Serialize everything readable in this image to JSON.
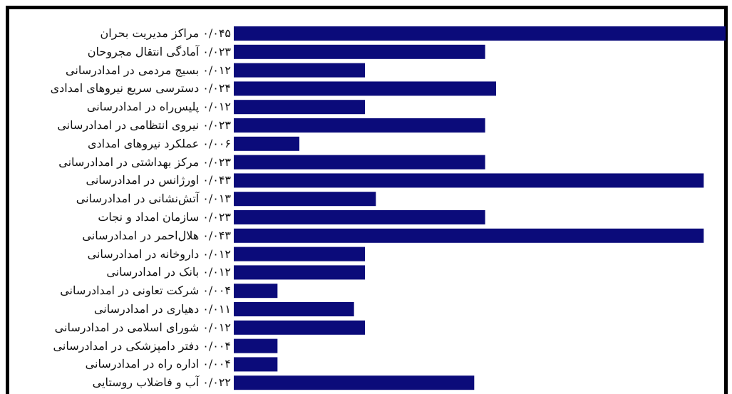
{
  "chart_data": {
    "type": "bar",
    "orientation": "horizontal",
    "color": "#0b0b7a",
    "categories": [
      "مراکز مدیریت بحران",
      "آمادگی انتقال مجروحان",
      "بسیج مردمی در امدادرسانی",
      "دسترسی سریع نیروهای امدادی",
      "پلیس‌راه در امدادرسانی",
      "نیروی انتظامی در امدادرسانی",
      "عملکرد نیروهای امدادی",
      "مرکز بهداشتی در امدادرسانی",
      "اورژانس در امدادرسانی",
      "آتش‌نشانی در امدادرسانی",
      "سازمان امداد و نجات",
      "هلال‌احمر در امدادرسانی",
      "داروخانه در امدادرسانی",
      "بانک در امدادرسانی",
      "شرکت تعاونی در امدادرسانی",
      "دهیاری در امدادرسانی",
      "شورای اسلامی در امدادرسانی",
      "دفتر دامپزشکی در امدادرسانی",
      "اداره راه در امدادرسانی",
      "آب و فاضلاب روستایی"
    ],
    "values": [
      0.045,
      0.023,
      0.012,
      0.024,
      0.012,
      0.023,
      0.006,
      0.023,
      0.043,
      0.013,
      0.023,
      0.043,
      0.012,
      0.012,
      0.004,
      0.011,
      0.012,
      0.004,
      0.004,
      0.022
    ],
    "value_labels": [
      "۰/۰۴۵",
      "۰/۰۲۳",
      "۰/۰۱۲",
      "۰/۰۲۴",
      "۰/۰۱۲",
      "۰/۰۲۳",
      "۰/۰۰۶",
      "۰/۰۲۳",
      "۰/۰۴۳",
      "۰/۰۱۳",
      "۰/۰۲۳",
      "۰/۰۴۳",
      "۰/۰۱۲",
      "۰/۰۱۲",
      "۰/۰۰۴",
      "۰/۰۱۱",
      "۰/۰۱۲",
      "۰/۰۰۴",
      "۰/۰۰۴",
      "۰/۰۲۲"
    ]
  }
}
